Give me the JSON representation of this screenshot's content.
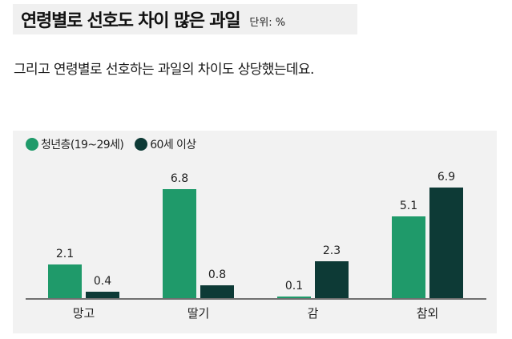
{
  "header": {
    "title": "연령별로 선호도 차이 많은 과일",
    "unit": "단위: %"
  },
  "subtitle": "그리고 연령별로 선호하는 과일의 차이도 상당했는데요.",
  "colors": {
    "young": "#1f9a6a",
    "senior": "#0d3a36",
    "panel_bg": "#f2f2f2",
    "axis": "#707070"
  },
  "legend": [
    {
      "label": "청년층(19~29세)",
      "color": "#1f9a6a"
    },
    {
      "label": "60세 이상",
      "color": "#0d3a36"
    }
  ],
  "chart_data": {
    "type": "bar",
    "title": "연령별로 선호도 차이 많은 과일",
    "unit": "%",
    "xlabel": "",
    "ylabel": "",
    "categories": [
      "망고",
      "딸기",
      "감",
      "참외"
    ],
    "series": [
      {
        "name": "청년층(19~29세)",
        "values": [
          2.1,
          6.8,
          0.1,
          5.1
        ],
        "labels": [
          "2.1",
          "6.8",
          "0.1",
          "5.1"
        ]
      },
      {
        "name": "60세 이상",
        "values": [
          0.4,
          0.8,
          2.3,
          6.9
        ],
        "labels": [
          "0.4",
          "0.8",
          "2.3",
          "6.9"
        ]
      }
    ],
    "ylim": [
      0,
      7
    ],
    "grid": false,
    "legend_position": "top-left"
  }
}
